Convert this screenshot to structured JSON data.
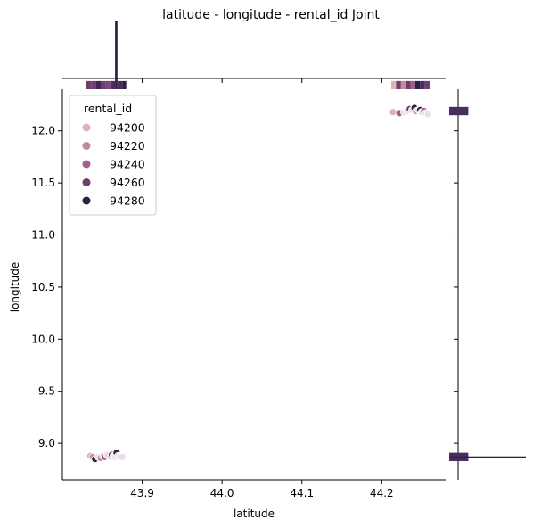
{
  "chart_data": {
    "type": "scatter",
    "title": "latitude - longitude - rental_id Joint",
    "xlabel": "latitude",
    "ylabel": "longitude",
    "xlim": [
      43.8,
      44.28
    ],
    "ylim": [
      8.65,
      12.4
    ],
    "xticks": [
      "43.9",
      "44.0",
      "44.1",
      "44.2"
    ],
    "yticks": [
      "9.0",
      "9.5",
      "10.0",
      "10.5",
      "11.0",
      "11.5",
      "12.0"
    ],
    "xtick_values": [
      43.9,
      44.0,
      44.1,
      44.2
    ],
    "ytick_values": [
      9.0,
      9.5,
      10.0,
      10.5,
      11.0,
      11.5,
      12.0
    ],
    "hue": "rental_id",
    "legend": {
      "title": "rental_id",
      "position": "upper-left",
      "entries": [
        {
          "label": "94200",
          "color": "#dfb3b3"
        },
        {
          "label": "94220",
          "color": "#c4899a"
        },
        {
          "label": "94240",
          "color": "#a2618a"
        },
        {
          "label": "94260",
          "color": "#6e3e6e"
        },
        {
          "label": "94280",
          "color": "#2f1f42"
        }
      ]
    },
    "points": [
      {
        "x": 43.835,
        "y": 8.88,
        "c": "#dfb3b3"
      },
      {
        "x": 43.838,
        "y": 8.87,
        "c": "#c4899a"
      },
      {
        "x": 43.841,
        "y": 8.85,
        "c": "#2f1f42"
      },
      {
        "x": 43.845,
        "y": 8.87,
        "c": "#e8dfe8"
      },
      {
        "x": 43.848,
        "y": 8.86,
        "c": "#c4899a"
      },
      {
        "x": 43.851,
        "y": 8.88,
        "c": "#e8dfe8"
      },
      {
        "x": 43.853,
        "y": 8.87,
        "c": "#a2618a"
      },
      {
        "x": 43.856,
        "y": 8.89,
        "c": "#e8dfe8"
      },
      {
        "x": 43.858,
        "y": 8.88,
        "c": "#dfb3b3"
      },
      {
        "x": 43.86,
        "y": 8.87,
        "c": "#e8dfe8"
      },
      {
        "x": 43.862,
        "y": 8.89,
        "c": "#6e3e6e"
      },
      {
        "x": 43.864,
        "y": 8.88,
        "c": "#e8dfe8"
      },
      {
        "x": 43.866,
        "y": 8.87,
        "c": "#e8dfe8"
      },
      {
        "x": 43.868,
        "y": 8.91,
        "c": "#2f1f42"
      },
      {
        "x": 43.87,
        "y": 8.88,
        "c": "#e8dfe8"
      },
      {
        "x": 43.872,
        "y": 8.87,
        "c": "#e8dfe8"
      },
      {
        "x": 43.875,
        "y": 8.87,
        "c": "#e8dfe8"
      },
      {
        "x": 44.214,
        "y": 12.18,
        "c": "#dfb3b3"
      },
      {
        "x": 44.222,
        "y": 12.17,
        "c": "#a2618a"
      },
      {
        "x": 44.228,
        "y": 12.18,
        "c": "#e8dfe8"
      },
      {
        "x": 44.232,
        "y": 12.19,
        "c": "#e8dfe8"
      },
      {
        "x": 44.235,
        "y": 12.21,
        "c": "#6e3e6e"
      },
      {
        "x": 44.238,
        "y": 12.2,
        "c": "#e8dfe8"
      },
      {
        "x": 44.241,
        "y": 12.22,
        "c": "#2f1f42"
      },
      {
        "x": 44.243,
        "y": 12.19,
        "c": "#c4899a"
      },
      {
        "x": 44.246,
        "y": 12.2,
        "c": "#e8dfe8"
      },
      {
        "x": 44.248,
        "y": 12.2,
        "c": "#2f1f42"
      },
      {
        "x": 44.25,
        "y": 12.18,
        "c": "#e8dfe8"
      },
      {
        "x": 44.253,
        "y": 12.19,
        "c": "#a2618a"
      },
      {
        "x": 44.255,
        "y": 12.17,
        "c": "#e8dfe8"
      },
      {
        "x": 44.258,
        "y": 12.16,
        "c": "#e8dfe8"
      }
    ],
    "top_marginal": [
      {
        "x0": 43.83,
        "x1": 43.836,
        "h": 0.12,
        "c": "#6e3e6e"
      },
      {
        "x0": 43.836,
        "x1": 43.842,
        "h": 0.12,
        "c": "#6e3e6e"
      },
      {
        "x0": 43.842,
        "x1": 43.848,
        "h": 0.12,
        "c": "#3d2750"
      },
      {
        "x0": 43.848,
        "x1": 43.854,
        "h": 0.12,
        "c": "#6e3e6e"
      },
      {
        "x0": 43.854,
        "x1": 43.86,
        "h": 0.12,
        "c": "#7a4a78"
      },
      {
        "x0": 43.86,
        "x1": 43.866,
        "h": 0.12,
        "c": "#4a2c5e"
      },
      {
        "x0": 43.866,
        "x1": 43.869,
        "h": 1.0,
        "c": "#2f1f42"
      },
      {
        "x0": 43.869,
        "x1": 43.875,
        "h": 0.12,
        "c": "#4a2c5e"
      },
      {
        "x0": 43.875,
        "x1": 43.88,
        "h": 0.12,
        "c": "#2f1f42"
      },
      {
        "x0": 44.212,
        "x1": 44.218,
        "h": 0.12,
        "c": "#dfb3b3"
      },
      {
        "x0": 44.218,
        "x1": 44.224,
        "h": 0.12,
        "c": "#6e3e6e"
      },
      {
        "x0": 44.224,
        "x1": 44.23,
        "h": 0.12,
        "c": "#c4899a"
      },
      {
        "x0": 44.23,
        "x1": 44.236,
        "h": 0.12,
        "c": "#6e3e6e"
      },
      {
        "x0": 44.236,
        "x1": 44.242,
        "h": 0.12,
        "c": "#a2618a"
      },
      {
        "x0": 44.242,
        "x1": 44.248,
        "h": 0.12,
        "c": "#2f1f42"
      },
      {
        "x0": 44.248,
        "x1": 44.254,
        "h": 0.12,
        "c": "#4a2c5e"
      },
      {
        "x0": 44.254,
        "x1": 44.26,
        "h": 0.12,
        "c": "#6e3e6e"
      }
    ],
    "right_marginal": [
      {
        "y0": 12.15,
        "y1": 12.23,
        "w": 0.15,
        "c": "#4a2c5e"
      },
      {
        "y0": 8.83,
        "y1": 8.91,
        "w": 0.15,
        "c": "#4a2c5e"
      },
      {
        "y0": 8.865,
        "y1": 8.875,
        "w": 1.0,
        "c": "#2f1f42"
      }
    ]
  }
}
